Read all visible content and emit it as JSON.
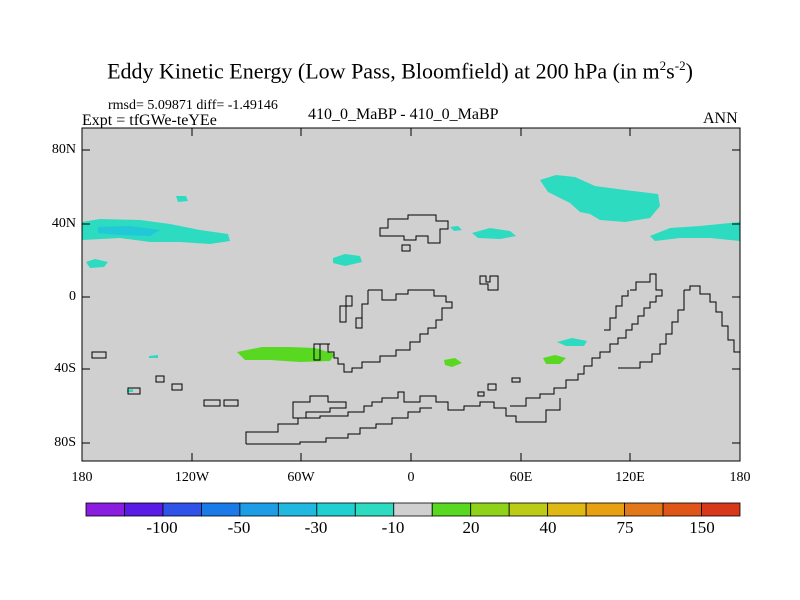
{
  "title": "Eddy Kinetic Energy (Low Pass, Bloomfield) at 200 hPa (in m",
  "title_exp1": "2",
  "title_mid": "s",
  "title_exp2": "-2",
  "title_end": ")",
  "stats": "rmsd= 5.09871 diff= -1.49146",
  "expt": "Expt = tfGWe-teYEe",
  "subtitle": "410_0_MaBP - 410_0_MaBP",
  "period": "ANN",
  "lat_labels": [
    "80N",
    "40N",
    "0",
    "40S",
    "80S"
  ],
  "lon_labels": [
    "180",
    "120W",
    "60W",
    "0",
    "60E",
    "120E",
    "180"
  ],
  "colorbar": {
    "colors": [
      "#8a1de0",
      "#5a1be6",
      "#2f52e8",
      "#1a7be8",
      "#1c9de6",
      "#20b8e0",
      "#20cfd2",
      "#2ddbc0",
      "#d0d0d0",
      "#58d820",
      "#8fd21a",
      "#bccb16",
      "#e0b814",
      "#e8a012",
      "#e2781a",
      "#e05518",
      "#d8381a"
    ],
    "labels": [
      "-100",
      "-50",
      "-30",
      "-10",
      "20",
      "40",
      "75",
      "150"
    ]
  },
  "colors": {
    "background": "#d0d0d0",
    "negative_small": "#2ddbc0",
    "negative_mid": "#20b8e0",
    "positive_small": "#58d820"
  }
}
